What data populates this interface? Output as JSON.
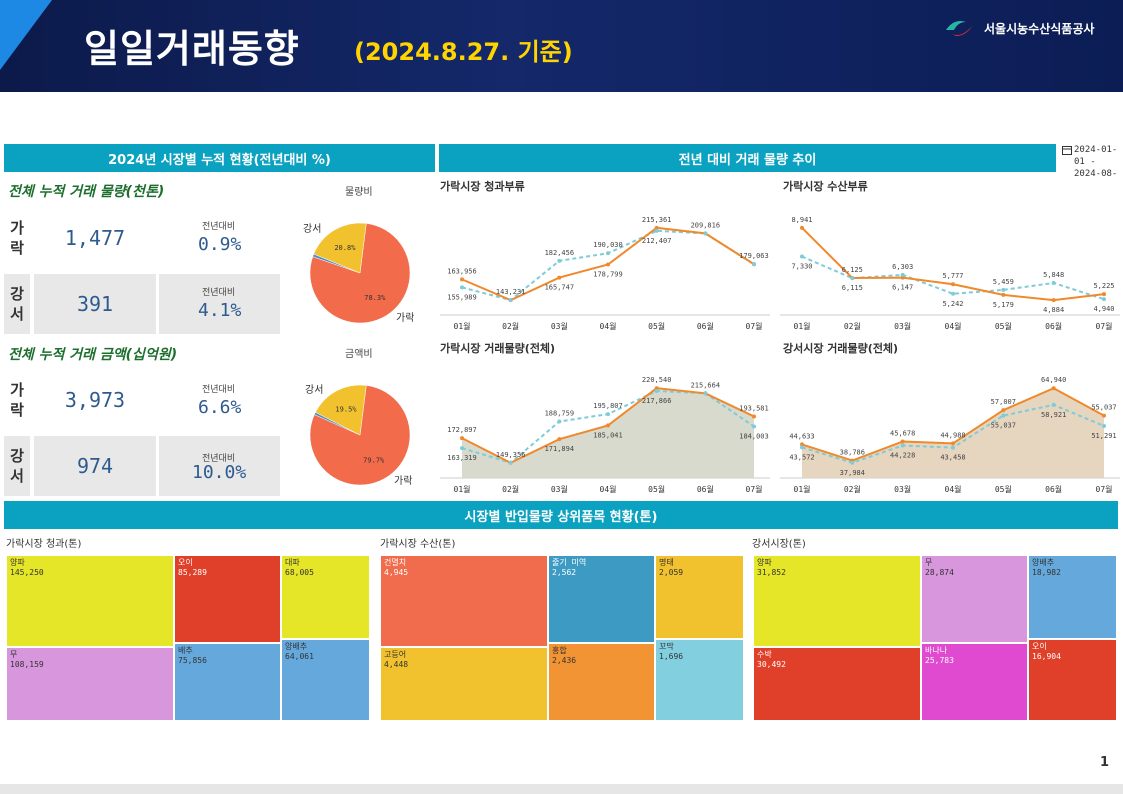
{
  "header": {
    "title": "일일거래동향",
    "date": "(2024.8.27. 기준)",
    "org": "서울시농수산식품공사"
  },
  "left_panel": {
    "title": "2024년 시장별 누적 현황(전년대비 %)",
    "volume_label": "전체 누적 거래 물량(천톤)",
    "amount_label": "전체 누적 거래 금액(십억원)",
    "volume_pie_title": "물량비",
    "amount_pie_title": "금액비",
    "yoy_label": "전년대비",
    "volume": [
      {
        "market": "가락",
        "value": "1,477",
        "yoy": "0.9%"
      },
      {
        "market": "강서",
        "value": "391",
        "yoy": "4.1%"
      }
    ],
    "amount": [
      {
        "market": "가락",
        "value": "3,973",
        "yoy": "6.6%"
      },
      {
        "market": "강서",
        "value": "974",
        "yoy": "10.0%"
      }
    ],
    "volume_pie": {
      "labels": [
        "가락",
        "강서"
      ],
      "values": [
        78.3,
        20.8
      ],
      "value_labels": [
        "78.3%",
        "20.8%"
      ]
    },
    "amount_pie": {
      "labels": [
        "가락",
        "강서"
      ],
      "values": [
        79.7,
        19.5
      ],
      "value_labels": [
        "79.7%",
        "19.5%"
      ]
    }
  },
  "trend_panel": {
    "title": "전년 대비 거래 물량 추이",
    "date_range": "2024-01-01 - 2024-08-"
  },
  "treemap_panel": {
    "title": "시장별 반입물량 상위품목 현황(톤)"
  },
  "colors": {
    "teal": "#0aa2c0",
    "current_line": "#f0892b",
    "prev_line": "#7ecbd9",
    "pie_garak": "#f26b4b",
    "pie_gangseo": "#f2c12e",
    "pie_other": "#4a90c8"
  },
  "chart_data": [
    {
      "type": "line",
      "title": "가락시장 청과부류",
      "categories": [
        "01월",
        "02월",
        "03월",
        "04월",
        "05월",
        "06월",
        "07월"
      ],
      "series": [
        {
          "role": "current",
          "values": [
            163956,
            143231,
            165747,
            178799,
            215361,
            209816,
            179063
          ]
        },
        {
          "role": "previous",
          "values": [
            155989,
            143231,
            182456,
            190030,
            212407,
            209816,
            179063
          ]
        }
      ]
    },
    {
      "type": "line",
      "title": "가락시장 수산부류",
      "categories": [
        "01월",
        "02월",
        "03월",
        "04월",
        "05월",
        "06월",
        "07월"
      ],
      "series": [
        {
          "role": "current",
          "values": [
            8941,
            6125,
            6147,
            5777,
            5179,
            4884,
            5225
          ]
        },
        {
          "role": "previous",
          "values": [
            7330,
            6115,
            6303,
            5242,
            5459,
            5848,
            4940
          ]
        }
      ]
    },
    {
      "type": "area",
      "title": "가락시장 거래물량(전체)",
      "categories": [
        "01월",
        "02월",
        "03월",
        "04월",
        "05월",
        "06월",
        "07월"
      ],
      "series": [
        {
          "role": "current",
          "values": [
            172897,
            149356,
            171894,
            185041,
            220540,
            215664,
            193581
          ]
        },
        {
          "role": "previous",
          "values": [
            163319,
            149356,
            188759,
            195807,
            217866,
            215664,
            184003
          ]
        }
      ]
    },
    {
      "type": "area",
      "title": "강서시장 거래물량(전체)",
      "categories": [
        "01월",
        "02월",
        "03월",
        "04월",
        "05월",
        "06월",
        "07월"
      ],
      "series": [
        {
          "role": "current",
          "values": [
            44633,
            38786,
            45678,
            44988,
            57007,
            64940,
            55037
          ]
        },
        {
          "role": "previous",
          "values": [
            43572,
            37984,
            44228,
            43458,
            55037,
            58921,
            51291
          ]
        }
      ]
    },
    {
      "type": "treemap",
      "title": "가락시장 청과(톤)",
      "items": [
        {
          "name": "양파",
          "value": "145,250",
          "color": "#e6e629"
        },
        {
          "name": "오이",
          "value": "85,289",
          "color": "#e0402a"
        },
        {
          "name": "대파",
          "value": "68,005",
          "color": "#e6e629"
        },
        {
          "name": "무",
          "value": "108,159",
          "color": "#d896dc"
        },
        {
          "name": "배추",
          "value": "75,856",
          "color": "#65a9dc"
        },
        {
          "name": "양배추",
          "value": "64,061",
          "color": "#65a9dc"
        }
      ]
    },
    {
      "type": "treemap",
      "title": "가락시장 수산(톤)",
      "items": [
        {
          "name": "건멸치",
          "value": "4,945",
          "color": "#f06c4c"
        },
        {
          "name": "줄기 미역",
          "value": "2,562",
          "color": "#3d9bc3"
        },
        {
          "name": "명태",
          "value": "2,059",
          "color": "#f2c12e"
        },
        {
          "name": "고등어",
          "value": "4,448",
          "color": "#f2c12e"
        },
        {
          "name": "홍합",
          "value": "2,436",
          "color": "#f29433"
        },
        {
          "name": "꼬막",
          "value": "1,696",
          "color": "#82cfe0"
        }
      ]
    },
    {
      "type": "treemap",
      "title": "강서시장(톤)",
      "items": [
        {
          "name": "양파",
          "value": "31,852",
          "color": "#e6e629"
        },
        {
          "name": "무",
          "value": "28,874",
          "color": "#d896dc"
        },
        {
          "name": "양배추",
          "value": "18,982",
          "color": "#65a9dc"
        },
        {
          "name": "수박",
          "value": "30,492",
          "color": "#e0402a"
        },
        {
          "name": "바나나",
          "value": "25,783",
          "color": "#e04ad0"
        },
        {
          "name": "오이",
          "value": "16,904",
          "color": "#e0402a"
        }
      ]
    }
  ],
  "page_number": "1"
}
